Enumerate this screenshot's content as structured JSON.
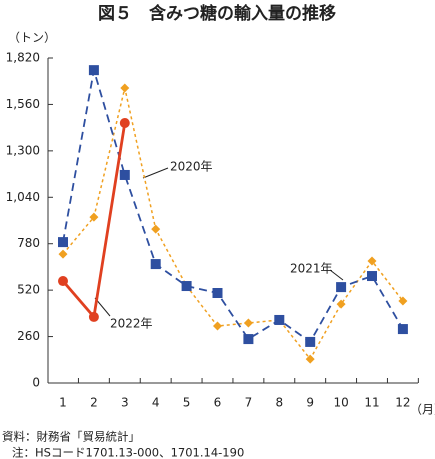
{
  "chart_data": {
    "type": "line",
    "title": "図５　含みつ糖の輸入量の推移",
    "y_unit": "（トン）",
    "x_unit": "（月）",
    "categories": [
      "1",
      "2",
      "3",
      "4",
      "5",
      "6",
      "7",
      "8",
      "9",
      "10",
      "11",
      "12"
    ],
    "ylim": [
      0,
      1820
    ],
    "yticks": [
      0,
      260,
      520,
      780,
      {
        "value": 1040,
        "label": "1,040"
      },
      {
        "value": 1300,
        "label": "1,300"
      },
      {
        "value": 1560,
        "label": "1,560"
      },
      {
        "value": 1820,
        "label": "1,820"
      }
    ],
    "grid": false,
    "series": [
      {
        "name": "2020年",
        "color": "#f0a020",
        "dash": "3,3",
        "marker": "diamond",
        "width": 1.5,
        "values": [
          722,
          929,
          1652,
          862,
          543,
          319,
          336,
          353,
          134,
          442,
          683,
          459
        ]
      },
      {
        "name": "2021年",
        "color": "#2e4fa0",
        "dash": "8,5",
        "marker": "square",
        "width": 1.8,
        "values": [
          789,
          1752,
          1165,
          666,
          543,
          504,
          246,
          353,
          230,
          537,
          599,
          302
        ]
      },
      {
        "name": "2022年",
        "color": "#e04020",
        "dash": "none",
        "marker": "circle",
        "width": 2.8,
        "values": [
          571,
          370,
          1456,
          null,
          null,
          null,
          null,
          null,
          null,
          null,
          null,
          null
        ]
      }
    ],
    "source": [
      "資料：財務省「貿易統計」",
      "注：HSコード1701.13-000、1701.14-190"
    ]
  }
}
